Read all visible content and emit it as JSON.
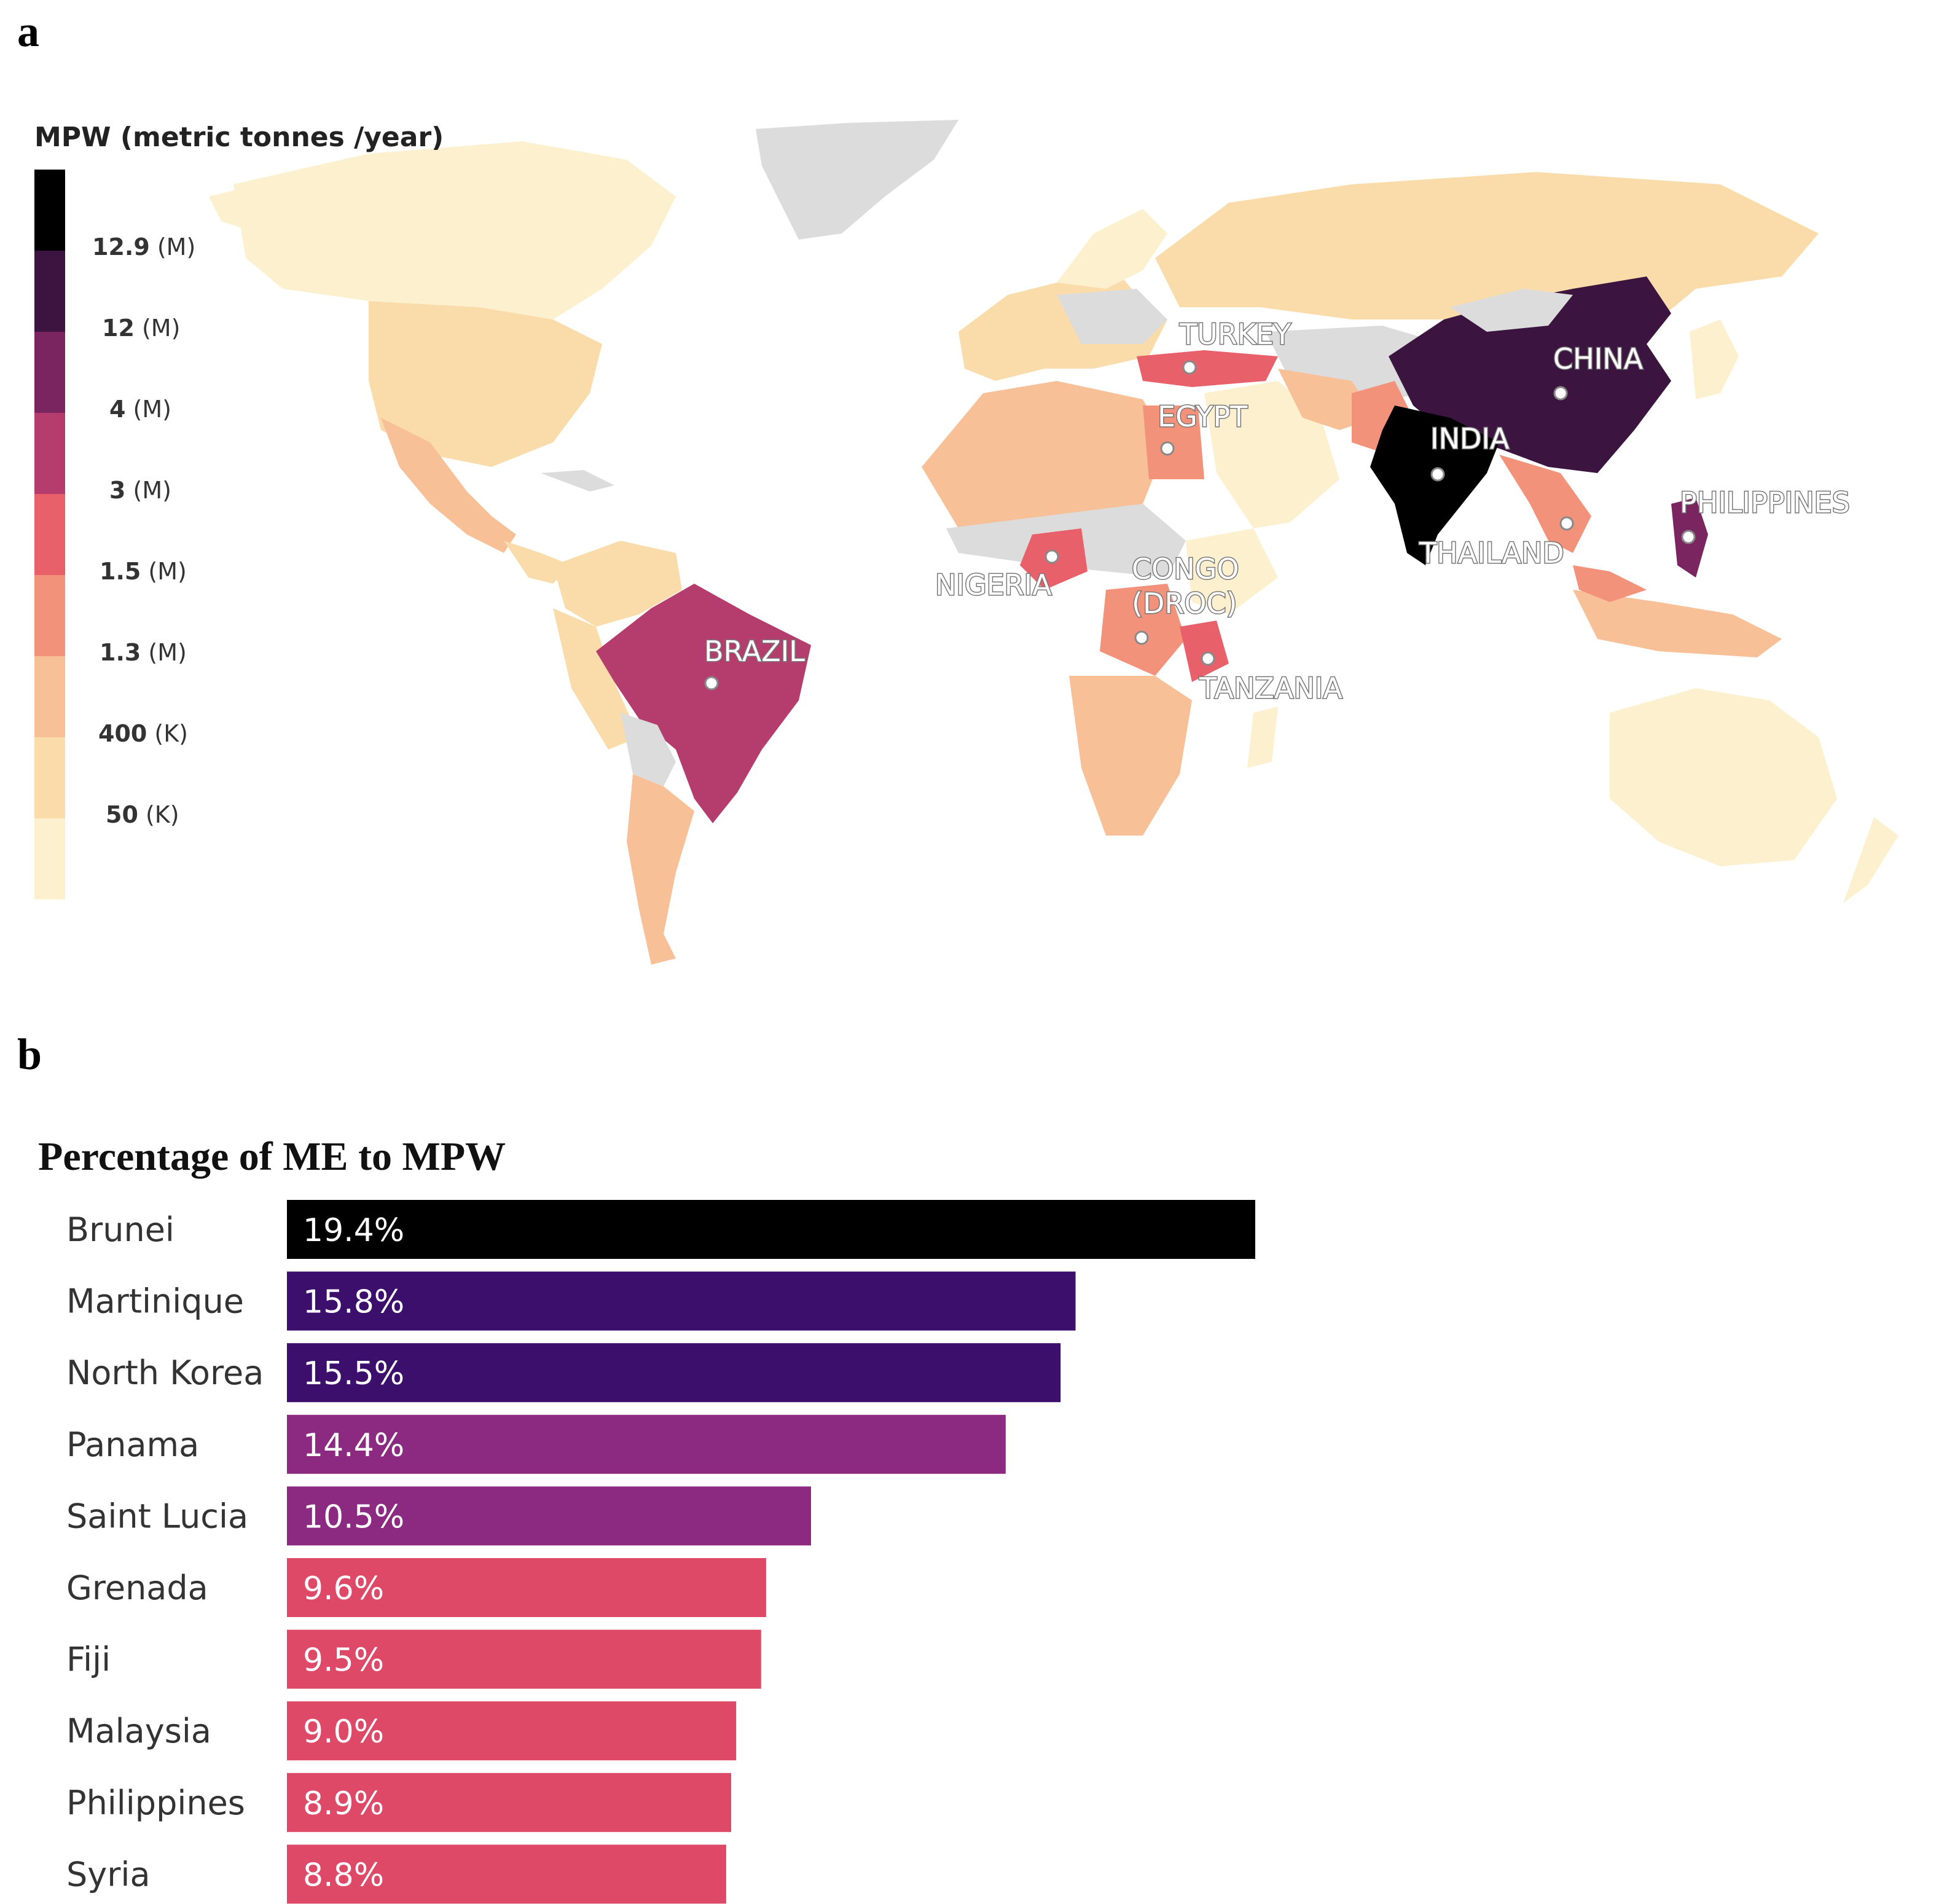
{
  "panels": {
    "a": "a",
    "b": "b"
  },
  "map": {
    "legend_title": "MPW (metric tonnes /year)",
    "legend": [
      {
        "color": "#000000"
      },
      {
        "color": "#3b1540",
        "value": "12.9",
        "unit": "(M)"
      },
      {
        "color": "#7a2460",
        "value": "12",
        "unit": "(M)"
      },
      {
        "color": "#b53d6e",
        "value": "4",
        "unit": "(M)"
      },
      {
        "color": "#e8606a",
        "value": "3",
        "unit": "(M)"
      },
      {
        "color": "#f3927a",
        "value": "1.5",
        "unit": "(M)"
      },
      {
        "color": "#f8c097",
        "value": "1.3",
        "unit": "(M)"
      },
      {
        "color": "#fadcaa",
        "value": "400",
        "unit": "(K)"
      },
      {
        "color": "#fcf0cf",
        "value": "50",
        "unit": "(K)"
      }
    ],
    "no_data_color": "#dcdcdc",
    "labels": {
      "turkey": "TURKEY",
      "china": "CHINA",
      "egypt": "EGYPT",
      "india": "INDIA",
      "philippines": "PHILIPPINES",
      "thailand": "THAILAND",
      "nigeria": "NIGERIA",
      "congo1": "CONGO",
      "congo2": "(DROC)",
      "brazil": "BRAZIL",
      "tanzania": "TANZANIA"
    }
  },
  "chart_data": {
    "type": "bar",
    "orientation": "horizontal",
    "title": "Percentage of ME to MPW",
    "categories": [
      "Brunei",
      "Martinique",
      "North Korea",
      "Panama",
      "Saint Lucia",
      "Grenada",
      "Fiji",
      "Malaysia",
      "Philippines",
      "Syria"
    ],
    "values": [
      19.4,
      15.8,
      15.5,
      14.4,
      10.5,
      9.6,
      9.5,
      9.0,
      8.9,
      8.8
    ],
    "value_labels": [
      "19.4%",
      "15.8%",
      "15.5%",
      "14.4%",
      "10.5%",
      "9.6%",
      "9.5%",
      "9.0%",
      "8.9%",
      "8.8%"
    ],
    "colors": [
      "#000000",
      "#3b0f6b",
      "#3b0f6b",
      "#8b2a80",
      "#8b2a80",
      "#de4968",
      "#de4968",
      "#de4968",
      "#de4968",
      "#de4968"
    ],
    "xlim": [
      0,
      19.4
    ],
    "xlabel": "",
    "ylabel": ""
  }
}
